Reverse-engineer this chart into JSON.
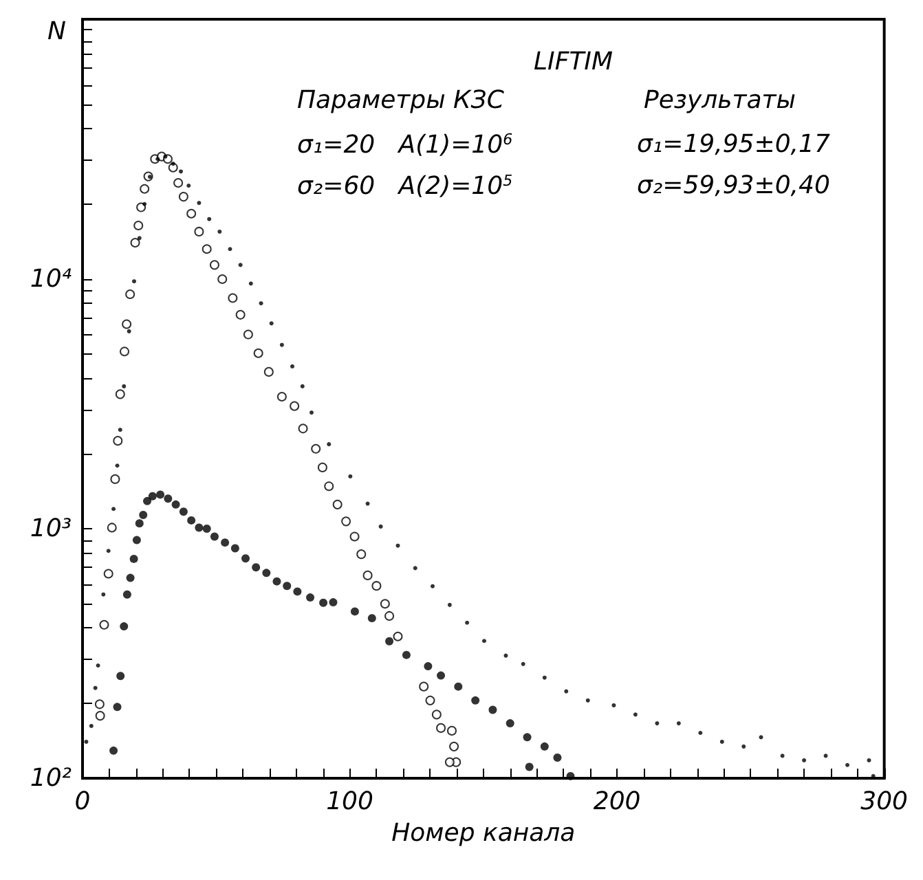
{
  "chart_data": {
    "type": "scatter",
    "xlabel": "Номер канала",
    "ylabel": "N",
    "log": "y",
    "xlim": [
      0,
      300
    ],
    "xticks": [
      0,
      {
        "value": 10,
        "label": null
      },
      {
        "value": 20,
        "label": null
      },
      {
        "value": 30,
        "label": null
      },
      {
        "value": 40,
        "label": null
      },
      {
        "value": 50,
        "label": null
      },
      {
        "value": 60,
        "label": null
      },
      {
        "value": 70,
        "label": null
      },
      {
        "value": 80,
        "label": null
      },
      {
        "value": 90,
        "label": null
      },
      100,
      {
        "value": 110,
        "label": null
      },
      {
        "value": 120,
        "label": null
      },
      {
        "value": 130,
        "label": null
      },
      {
        "value": 140,
        "label": null
      },
      {
        "value": 150,
        "label": null
      },
      {
        "value": 160,
        "label": null
      },
      {
        "value": 170,
        "label": null
      },
      {
        "value": 180,
        "label": null
      },
      {
        "value": 190,
        "label": null
      },
      200,
      {
        "value": 210,
        "label": null
      },
      {
        "value": 220,
        "label": null
      },
      {
        "value": 230,
        "label": null
      },
      {
        "value": 240,
        "label": null
      },
      {
        "value": 250,
        "label": null
      },
      {
        "value": 260,
        "label": null
      },
      {
        "value": 270,
        "label": null
      },
      {
        "value": 280,
        "label": null
      },
      {
        "value": 290,
        "label": null
      },
      300
    ],
    "ylim": [
      100,
      110000
    ],
    "yticks": [
      {
        "value": 100,
        "label": "10²"
      },
      {
        "value": 200,
        "label": null
      },
      {
        "value": 300,
        "label": null
      },
      {
        "value": 400,
        "label": null
      },
      {
        "value": 500,
        "label": null
      },
      {
        "value": 600,
        "label": null
      },
      {
        "value": 700,
        "label": null
      },
      {
        "value": 800,
        "label": null
      },
      {
        "value": 900,
        "label": null
      },
      {
        "value": 1000,
        "label": "10³"
      },
      {
        "value": 2000,
        "label": null
      },
      {
        "value": 3000,
        "label": null
      },
      {
        "value": 4000,
        "label": null
      },
      {
        "value": 5000,
        "label": null
      },
      {
        "value": 6000,
        "label": null
      },
      {
        "value": 7000,
        "label": null
      },
      {
        "value": 8000,
        "label": null
      },
      {
        "value": 9000,
        "label": null
      },
      {
        "value": 10000,
        "label": "10⁴"
      },
      {
        "value": 20000,
        "label": null
      },
      {
        "value": 30000,
        "label": null
      },
      {
        "value": 40000,
        "label": null
      },
      {
        "value": 50000,
        "label": null
      },
      {
        "value": 60000,
        "label": null
      },
      {
        "value": 70000,
        "label": null
      },
      {
        "value": 80000,
        "label": null
      },
      {
        "value": 90000,
        "label": null
      },
      {
        "value": 100000,
        "label": null
      }
    ],
    "annotations": [
      "LIFTIM",
      "Параметры КЗС",
      "σ₁=20   A(1)=10$^{6}$",
      "σ₂=60   A(2)=10$^{5}$",
      "Результаты",
      "σ₁=19,95±0,17",
      "σ₂=59,93±0,40"
    ],
    "series": [
      {
        "color": "#000000",
        "marker": "circle",
        "x": [
          6.4,
          6.6,
          8.1,
          9.7,
          11.0,
          12.2,
          13.2,
          14.1,
          15.7,
          16.5,
          17.8,
          19.7,
          20.9,
          21.9,
          23.2,
          24.6,
          27.1,
          29.6,
          31.9,
          33.9,
          35.8,
          37.8,
          40.7,
          43.6,
          46.5,
          49.4,
          52.3,
          56.2,
          59.1,
          62.0,
          65.8,
          69.7,
          74.6,
          79.3,
          82.5,
          87.3,
          89.8,
          92.2,
          95.4,
          98.6,
          101.8,
          104.3,
          106.7,
          110.0,
          113.2,
          114.8,
          118.0,
          127.7,
          130.1,
          132.5,
          134.1,
          138.2,
          139.0,
          139.8,
          137.4
        ],
        "values": [
          198,
          178,
          412,
          660,
          1010,
          1580,
          2250,
          3460,
          5130,
          6600,
          8700,
          14000,
          16400,
          19400,
          23000,
          25800,
          30300,
          31000,
          30300,
          28000,
          24300,
          21400,
          18300,
          15500,
          13200,
          11400,
          10000,
          8400,
          7200,
          6000,
          5050,
          4250,
          3380,
          3100,
          2520,
          2090,
          1760,
          1480,
          1250,
          1070,
          930,
          790,
          650,
          590,
          500,
          447,
          370,
          233,
          205,
          180,
          159,
          155,
          134,
          116,
          116
        ]
      },
      {
        "color": "#000000",
        "marker": "circle",
        "x": [
          1.4,
          3.3,
          4.8,
          5.8,
          7.8,
          9.7,
          11.6,
          13.0,
          14.1,
          15.5,
          17.4,
          19.3,
          21.3,
          23.2,
          25.2,
          28.1,
          31.0,
          33.9,
          36.8,
          39.7,
          43.6,
          47.4,
          51.3,
          55.2,
          59.1,
          63.0,
          66.8,
          70.7,
          74.6,
          78.5,
          82.3,
          85.7,
          92.2,
          100.2,
          106.7,
          111.6,
          118.0,
          124.5,
          131.0,
          137.4,
          143.9,
          150.3,
          158.4,
          164.9,
          172.9,
          181.0,
          189.1,
          198.8,
          206.9,
          215.0,
          223.1,
          231.2,
          239.3,
          247.4,
          253.9,
          261.9,
          270.0,
          278.1,
          286.2,
          294.3,
          295.9
        ],
        "values": [
          140,
          162,
          230,
          283,
          545,
          815,
          1200,
          1790,
          2490,
          3720,
          6180,
          9800,
          14600,
          20000,
          25700,
          30300,
          31000,
          29000,
          27000,
          23700,
          20200,
          17400,
          15500,
          13200,
          11400,
          9600,
          8000,
          6650,
          5450,
          4470,
          3720,
          2920,
          2180,
          1620,
          1260,
          1020,
          855,
          695,
          588,
          495,
          420,
          355,
          310,
          287,
          253,
          223,
          205,
          196,
          180,
          166,
          166,
          152,
          140,
          134,
          146,
          123,
          118,
          123,
          113,
          118,
          102
        ]
      },
      {
        "color": "#000000",
        "marker": "circle",
        "x": [
          11.6,
          13.0,
          14.2,
          15.5,
          16.7,
          17.9,
          19.2,
          20.3,
          21.3,
          22.7,
          24.2,
          26.2,
          29.1,
          32.0,
          34.9,
          37.8,
          40.7,
          43.6,
          46.5,
          49.4,
          53.3,
          57.1,
          61.0,
          64.9,
          68.8,
          72.7,
          76.5,
          80.4,
          85.2,
          90.1,
          93.8,
          101.9,
          108.3,
          114.8,
          121.2,
          129.3,
          134.1,
          140.6,
          147.0,
          153.5,
          160.0,
          166.4,
          167.2,
          172.9,
          177.7,
          182.6
        ],
        "values": [
          129,
          193,
          257,
          406,
          545,
          635,
          757,
          900,
          1050,
          1135,
          1290,
          1350,
          1370,
          1320,
          1250,
          1170,
          1080,
          1010,
          1000,
          930,
          880,
          835,
          760,
          700,
          665,
          615,
          590,
          560,
          530,
          505,
          507,
          466,
          438,
          354,
          312,
          281,
          258,
          233,
          205,
          188,
          166,
          146,
          111,
          134,
          121,
          102
        ]
      }
    ]
  }
}
